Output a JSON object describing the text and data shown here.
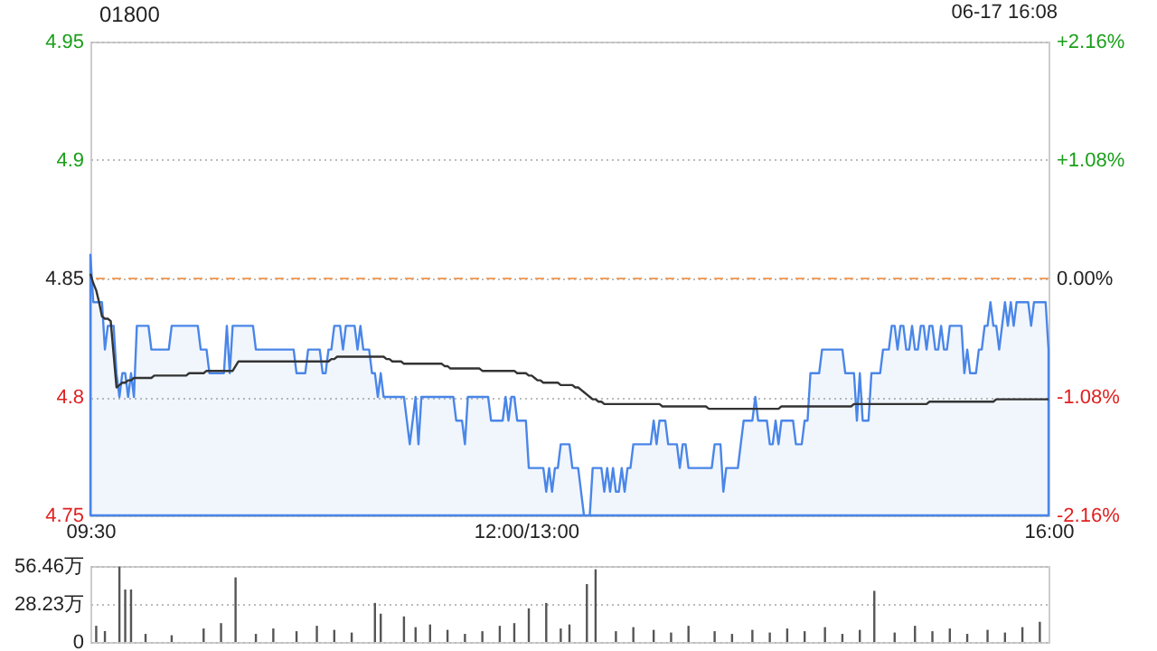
{
  "chart_data": [
    {
      "type": "area",
      "title": "01800",
      "annotations": [
        "06-17 16:08"
      ],
      "categories": [
        "09:30",
        null,
        null,
        null,
        null,
        null,
        null,
        null,
        null,
        null,
        null,
        null,
        null,
        null,
        null,
        null,
        null,
        null,
        null,
        null,
        null,
        null,
        null,
        null,
        null,
        null,
        null,
        null,
        null,
        null,
        null,
        null,
        null,
        null,
        null,
        null,
        null,
        null,
        null,
        null,
        null,
        null,
        null,
        null,
        null,
        null,
        null,
        null,
        null,
        null,
        null,
        null,
        null,
        null,
        null,
        null,
        null,
        null,
        null,
        null,
        null,
        null,
        null,
        null,
        null,
        null,
        null,
        null,
        null,
        null,
        null,
        null,
        null,
        null,
        null,
        null,
        null,
        null,
        null,
        null,
        null,
        null,
        null,
        null,
        null,
        null,
        null,
        null,
        null,
        null,
        null,
        null,
        null,
        null,
        null,
        null,
        null,
        null,
        null,
        null,
        null,
        null,
        null,
        null,
        null,
        null,
        null,
        null,
        null,
        null,
        null,
        null,
        null,
        null,
        null,
        null,
        null,
        null,
        null,
        null,
        null,
        null,
        null,
        null,
        null,
        null,
        null,
        null,
        null,
        null,
        null,
        null,
        null,
        null,
        null,
        null,
        null,
        null,
        null,
        null,
        null,
        null,
        null,
        null,
        null,
        null,
        null,
        null,
        null,
        null,
        "12:00/13:00",
        null,
        null,
        null,
        null,
        null,
        null,
        null,
        null,
        null,
        null,
        null,
        null,
        null,
        null,
        null,
        null,
        null,
        null,
        null,
        null,
        null,
        null,
        null,
        null,
        null,
        null,
        null,
        null,
        null,
        null,
        null,
        null,
        null,
        null,
        null,
        null,
        null,
        null,
        null,
        null,
        null,
        null,
        null,
        null,
        null,
        null,
        null,
        null,
        null,
        null,
        null,
        null,
        null,
        null,
        null,
        null,
        null,
        null,
        null,
        null,
        null,
        null,
        null,
        null,
        null,
        null,
        null,
        null,
        null,
        null,
        null,
        null,
        null,
        null,
        null,
        null,
        null,
        null,
        null,
        null,
        null,
        null,
        null,
        null,
        null,
        null,
        null,
        null,
        null,
        null,
        null,
        null,
        null,
        null,
        null,
        null,
        null,
        null,
        null,
        null,
        null,
        null,
        null,
        null,
        null,
        null,
        null,
        null,
        null,
        null,
        null,
        null,
        null,
        null,
        null,
        null,
        null,
        null,
        null,
        null,
        null,
        null,
        null,
        null,
        null,
        null,
        null,
        null,
        null,
        null,
        null,
        null,
        null,
        null,
        null,
        null,
        null,
        null,
        null,
        null,
        null,
        null,
        null,
        null,
        null,
        null,
        null,
        null,
        null,
        null,
        null,
        null,
        null,
        null,
        null,
        null,
        null,
        null,
        null,
        null,
        null,
        null,
        null,
        null,
        null,
        null,
        null,
        null,
        null,
        null,
        null,
        null,
        null,
        null,
        null,
        null,
        null,
        null,
        null,
        "16:00"
      ],
      "ylim": [
        4.75,
        4.95
      ],
      "yticks": [
        4.75,
        4.8,
        4.85,
        4.9,
        4.95
      ],
      "y2lim": [
        -2.16,
        2.16
      ],
      "y2ticks": [
        {
          "value": -2.16,
          "label": "-2.16%"
        },
        {
          "value": -1.08,
          "label": "-1.08%"
        },
        {
          "value": 0,
          "label": "0.00%"
        },
        {
          "value": 1.08,
          "label": "+1.08%"
        },
        {
          "value": 2.16,
          "label": "+2.16%"
        }
      ],
      "grid": "y",
      "ref_lines": [
        {
          "axis": "y",
          "value": 4.85,
          "color": "#f0a060",
          "line_style": "dashed"
        }
      ],
      "series": [
        {
          "type": "area",
          "color": "#4a86e8",
          "values": [
            4.86,
            4.84,
            4.84,
            4.84,
            4.84,
            4.82,
            4.83,
            4.83,
            4.83,
            4.81,
            4.8,
            4.81,
            4.81,
            4.8,
            4.81,
            4.8,
            4.83,
            4.83,
            4.83,
            4.83,
            4.83,
            4.82,
            4.82,
            4.82,
            4.82,
            4.82,
            4.82,
            4.82,
            4.83,
            4.83,
            4.83,
            4.83,
            4.83,
            4.83,
            4.83,
            4.83,
            4.83,
            4.83,
            4.82,
            4.82,
            4.82,
            4.81,
            4.81,
            4.81,
            4.81,
            4.81,
            4.81,
            4.83,
            4.81,
            4.83,
            4.83,
            4.83,
            4.83,
            4.83,
            4.83,
            4.83,
            4.83,
            4.82,
            4.82,
            4.82,
            4.82,
            4.82,
            4.82,
            4.82,
            4.82,
            4.82,
            4.82,
            4.82,
            4.82,
            4.82,
            4.82,
            4.81,
            4.81,
            4.81,
            4.81,
            4.82,
            4.82,
            4.82,
            4.82,
            4.82,
            4.81,
            4.81,
            4.82,
            4.82,
            4.83,
            4.83,
            4.83,
            4.82,
            4.83,
            4.83,
            4.83,
            4.83,
            4.82,
            4.83,
            4.82,
            4.82,
            4.82,
            4.81,
            4.81,
            4.8,
            4.81,
            4.8,
            4.8,
            4.8,
            4.8,
            4.8,
            4.8,
            4.8,
            4.8,
            4.79,
            4.78,
            4.79,
            4.8,
            4.78,
            4.8,
            4.8,
            4.8,
            4.8,
            4.8,
            4.8,
            4.8,
            4.8,
            4.8,
            4.8,
            4.8,
            4.8,
            4.79,
            4.79,
            4.79,
            4.78,
            4.8,
            4.8,
            4.8,
            4.8,
            4.8,
            4.8,
            4.8,
            4.8,
            4.79,
            4.79,
            4.79,
            4.79,
            4.79,
            4.8,
            4.79,
            4.8,
            4.8,
            4.79,
            4.79,
            4.79,
            4.79,
            4.77,
            4.77,
            4.77,
            4.77,
            4.77,
            4.77,
            4.76,
            4.77,
            4.76,
            4.77,
            4.77,
            4.78,
            4.78,
            4.78,
            4.78,
            4.77,
            4.77,
            4.77,
            4.76,
            4.75,
            4.75,
            4.75,
            4.77,
            4.77,
            4.77,
            4.77,
            4.76,
            4.77,
            4.76,
            4.77,
            4.76,
            4.76,
            4.77,
            4.76,
            4.77,
            4.77,
            4.78,
            4.78,
            4.78,
            4.78,
            4.78,
            4.78,
            4.78,
            4.79,
            4.78,
            4.79,
            4.79,
            4.79,
            4.78,
            4.78,
            4.78,
            4.78,
            4.77,
            4.78,
            4.78,
            4.77,
            4.77,
            4.77,
            4.77,
            4.77,
            4.77,
            4.77,
            4.77,
            4.77,
            4.78,
            4.78,
            4.78,
            4.76,
            4.77,
            4.77,
            4.77,
            4.77,
            4.77,
            4.78,
            4.79,
            4.79,
            4.79,
            4.79,
            4.8,
            4.79,
            4.79,
            4.79,
            4.79,
            4.78,
            4.78,
            4.79,
            4.78,
            4.79,
            4.79,
            4.79,
            4.79,
            4.79,
            4.78,
            4.78,
            4.78,
            4.79,
            4.79,
            4.81,
            4.81,
            4.81,
            4.81,
            4.82,
            4.82,
            4.82,
            4.82,
            4.82,
            4.82,
            4.82,
            4.82,
            4.81,
            4.81,
            4.81,
            4.81,
            4.79,
            4.81,
            4.79,
            4.79,
            4.79,
            4.81,
            4.81,
            4.81,
            4.81,
            4.82,
            4.82,
            4.82,
            4.83,
            4.83,
            4.82,
            4.83,
            4.83,
            4.82,
            4.82,
            4.83,
            4.82,
            4.82,
            4.83,
            4.83,
            4.82,
            4.83,
            4.83,
            4.82,
            4.82,
            4.83,
            4.82,
            4.82,
            4.83,
            4.83,
            4.83,
            4.83,
            4.83,
            4.81,
            4.82,
            4.81,
            4.81,
            4.81,
            4.82,
            4.82,
            4.83,
            4.83,
            4.84,
            4.83,
            4.83,
            4.82,
            4.83,
            4.84,
            4.83,
            4.84,
            4.83,
            4.84,
            4.84,
            4.84,
            4.84,
            4.84,
            4.83,
            4.84,
            4.84,
            4.84,
            4.84,
            4.84,
            4.82
          ]
        },
        {
          "type": "line",
          "color": "#333333",
          "values": [
            4.852,
            4.848,
            4.845,
            4.84,
            4.834,
            4.833,
            4.833,
            4.832,
            4.818,
            4.804,
            4.805,
            4.806,
            4.806,
            4.807,
            4.807,
            4.808,
            4.808,
            4.808,
            4.808,
            4.808,
            4.808,
            4.808,
            4.809,
            4.809,
            4.809,
            4.809,
            4.809,
            4.809,
            4.809,
            4.809,
            4.809,
            4.809,
            4.809,
            4.809,
            4.81,
            4.81,
            4.81,
            4.81,
            4.81,
            4.81,
            4.811,
            4.811,
            4.811,
            4.811,
            4.811,
            4.811,
            4.811,
            4.811,
            4.811,
            4.811,
            4.813,
            4.815,
            4.815,
            4.815,
            4.815,
            4.815,
            4.815,
            4.815,
            4.815,
            4.815,
            4.815,
            4.815,
            4.815,
            4.815,
            4.815,
            4.815,
            4.815,
            4.815,
            4.815,
            4.815,
            4.815,
            4.815,
            4.815,
            4.815,
            4.815,
            4.815,
            4.815,
            4.815,
            4.815,
            4.815,
            4.815,
            4.815,
            4.815,
            4.816,
            4.816,
            4.817,
            4.817,
            4.817,
            4.817,
            4.817,
            4.817,
            4.817,
            4.817,
            4.817,
            4.817,
            4.817,
            4.817,
            4.817,
            4.817,
            4.817,
            4.817,
            4.817,
            4.816,
            4.816,
            4.815,
            4.815,
            4.815,
            4.815,
            4.814,
            4.814,
            4.814,
            4.814,
            4.814,
            4.814,
            4.814,
            4.814,
            4.814,
            4.814,
            4.814,
            4.814,
            4.814,
            4.814,
            4.813,
            4.813,
            4.812,
            4.812,
            4.812,
            4.812,
            4.812,
            4.812,
            4.812,
            4.812,
            4.812,
            4.812,
            4.812,
            4.811,
            4.811,
            4.811,
            4.811,
            4.811,
            4.811,
            4.811,
            4.811,
            4.811,
            4.811,
            4.811,
            4.811,
            4.81,
            4.81,
            4.81,
            4.81,
            4.809,
            4.809,
            4.808,
            4.807,
            4.807,
            4.806,
            4.806,
            4.806,
            4.806,
            4.806,
            4.806,
            4.805,
            4.805,
            4.805,
            4.805,
            4.805,
            4.804,
            4.804,
            4.803,
            4.802,
            4.801,
            4.8,
            4.799,
            4.799,
            4.798,
            4.798,
            4.797,
            4.797,
            4.797,
            4.797,
            4.797,
            4.797,
            4.797,
            4.797,
            4.797,
            4.797,
            4.797,
            4.797,
            4.797,
            4.797,
            4.797,
            4.797,
            4.797,
            4.797,
            4.797,
            4.797,
            4.796,
            4.796,
            4.796,
            4.796,
            4.796,
            4.796,
            4.796,
            4.796,
            4.796,
            4.796,
            4.796,
            4.796,
            4.796,
            4.796,
            4.796,
            4.796,
            4.795,
            4.795,
            4.795,
            4.795,
            4.795,
            4.795,
            4.795,
            4.795,
            4.795,
            4.795,
            4.795,
            4.795,
            4.795,
            4.795,
            4.795,
            4.795,
            4.795,
            4.795,
            4.795,
            4.795,
            4.795,
            4.795,
            4.795,
            4.795,
            4.795,
            4.796,
            4.796,
            4.796,
            4.796,
            4.796,
            4.796,
            4.796,
            4.796,
            4.796,
            4.796,
            4.796,
            4.796,
            4.796,
            4.796,
            4.796,
            4.796,
            4.796,
            4.796,
            4.796,
            4.796,
            4.796,
            4.796,
            4.796,
            4.796,
            4.796,
            4.797,
            4.797,
            4.797,
            4.797,
            4.797,
            4.797,
            4.797,
            4.797,
            4.797,
            4.797,
            4.797,
            4.797,
            4.797,
            4.797,
            4.797,
            4.797,
            4.797,
            4.797,
            4.797,
            4.797,
            4.797,
            4.797,
            4.797,
            4.797,
            4.797,
            4.797,
            4.798,
            4.798,
            4.798,
            4.798,
            4.798,
            4.798,
            4.798,
            4.798,
            4.798,
            4.798,
            4.798,
            4.798,
            4.798,
            4.798,
            4.798,
            4.798,
            4.798,
            4.798,
            4.798,
            4.798,
            4.798,
            4.798,
            4.798,
            4.799,
            4.799,
            4.799,
            4.799,
            4.799,
            4.799,
            4.799,
            4.799,
            4.799,
            4.799,
            4.799,
            4.799,
            4.799,
            4.799,
            4.799,
            4.799,
            4.799,
            4.799,
            4.799
          ]
        }
      ]
    },
    {
      "type": "bar",
      "categories": [
        null,
        null,
        null,
        null,
        null,
        null,
        null,
        null,
        null,
        null,
        null,
        null,
        null,
        null,
        null,
        null,
        null,
        null,
        null,
        null,
        null,
        null,
        null,
        null,
        null,
        null,
        null,
        null,
        null,
        null,
        null,
        null,
        null,
        null,
        null,
        null,
        null,
        null,
        null,
        null,
        null,
        null,
        null,
        null,
        null,
        null,
        null,
        null,
        null,
        null,
        null,
        null,
        null,
        null,
        null,
        null,
        null,
        null,
        null,
        null,
        null,
        null,
        null,
        null,
        null,
        null,
        null,
        null,
        null,
        null,
        null,
        null,
        null,
        null,
        null,
        null,
        null,
        null,
        null,
        null,
        null,
        null,
        null,
        null,
        null,
        null,
        null,
        null,
        null,
        null,
        null,
        null,
        null,
        null,
        null,
        null,
        null,
        null,
        null,
        null,
        null,
        null,
        null,
        null,
        null,
        null,
        null,
        null,
        null,
        null,
        null,
        null,
        null,
        null,
        null,
        null,
        null,
        null,
        null,
        null,
        null,
        null,
        null,
        null,
        null,
        null,
        null,
        null,
        null,
        null,
        null,
        null,
        null,
        null,
        null,
        null,
        null,
        null,
        null,
        null,
        null,
        null,
        null,
        null,
        null,
        null,
        null,
        null,
        null,
        null,
        null,
        null,
        null,
        null,
        null,
        null,
        null,
        null,
        null,
        null,
        null,
        null,
        null,
        null,
        null,
        null,
        null,
        null,
        null,
        null,
        null,
        null,
        null,
        null,
        null,
        null,
        null,
        null,
        null,
        null,
        null,
        null,
        null,
        null,
        null,
        null,
        null,
        null,
        null,
        null,
        null,
        null,
        null,
        null,
        null,
        null,
        null,
        null,
        null,
        null,
        null,
        null,
        null,
        null,
        null,
        null,
        null,
        null,
        null,
        null,
        null,
        null,
        null,
        null,
        null,
        null,
        null,
        null,
        null,
        null,
        null,
        null,
        null,
        null,
        null,
        null,
        null,
        null,
        null,
        null,
        null,
        null,
        null,
        null,
        null,
        null,
        null,
        null,
        null,
        null,
        null,
        null,
        null,
        null,
        null,
        null,
        null,
        null,
        null,
        null,
        null,
        null,
        null,
        null,
        null,
        null,
        null,
        null,
        null,
        null,
        null,
        null,
        null,
        null,
        null,
        null,
        null,
        null,
        null,
        null,
        null,
        null,
        null,
        null,
        null,
        null,
        null,
        null,
        null,
        null,
        null,
        null,
        null,
        null,
        null,
        null,
        null,
        null,
        null,
        null,
        null,
        null,
        null,
        null,
        null,
        null,
        null,
        null,
        null,
        null,
        null,
        null,
        null,
        null,
        null,
        null,
        null,
        null,
        null,
        null,
        null,
        null,
        null,
        null,
        null,
        null,
        null,
        null,
        null,
        null,
        null,
        null,
        null,
        null,
        null,
        null,
        null,
        null,
        null,
        null,
        null
      ],
      "ylim": [
        0,
        56.46
      ],
      "yticks": [
        0,
        {
          "value": 28.23,
          "label": "28.23万"
        },
        {
          "value": 56.46,
          "label": "56.46万"
        }
      ],
      "grid": "y",
      "series": [
        {
          "color": "#555555",
          "values": [
            null,
            null,
            12,
            null,
            null,
            8,
            null,
            null,
            null,
            null,
            56,
            null,
            39,
            null,
            39,
            null,
            null,
            null,
            null,
            6,
            null,
            null,
            null,
            null,
            null,
            null,
            null,
            null,
            5,
            null,
            null,
            null,
            null,
            null,
            null,
            null,
            null,
            null,
            null,
            10,
            null,
            null,
            null,
            null,
            null,
            14,
            null,
            null,
            null,
            null,
            48,
            null,
            null,
            null,
            null,
            null,
            null,
            6,
            null,
            null,
            null,
            null,
            null,
            10,
            null,
            null,
            null,
            null,
            null,
            null,
            null,
            8,
            null,
            null,
            null,
            null,
            null,
            null,
            12,
            null,
            null,
            null,
            null,
            null,
            9,
            null,
            null,
            null,
            null,
            null,
            7,
            null,
            null,
            null,
            null,
            null,
            null,
            null,
            29,
            null,
            21,
            null,
            null,
            null,
            null,
            null,
            null,
            null,
            19,
            null,
            null,
            null,
            11,
            null,
            null,
            null,
            null,
            13,
            null,
            null,
            null,
            null,
            null,
            9,
            null,
            null,
            null,
            null,
            null,
            6,
            null,
            null,
            null,
            null,
            null,
            8,
            null,
            null,
            null,
            null,
            null,
            12,
            null,
            null,
            null,
            null,
            14,
            null,
            null,
            null,
            null,
            25,
            null,
            null,
            null,
            null,
            null,
            29,
            null,
            null,
            null,
            null,
            10,
            null,
            null,
            13,
            null,
            null,
            null,
            null,
            null,
            43,
            null,
            null,
            54,
            null,
            null,
            null,
            null,
            null,
            null,
            8,
            null,
            null,
            null,
            null,
            null,
            11,
            null,
            null,
            null,
            null,
            null,
            null,
            9,
            null,
            null,
            null,
            null,
            null,
            7,
            null,
            null,
            null,
            null,
            null,
            12,
            null,
            null,
            null,
            null,
            null,
            null,
            null,
            null,
            8,
            null,
            null,
            null,
            null,
            null,
            6,
            null,
            null,
            null,
            null,
            null,
            null,
            9,
            null,
            null,
            null,
            null,
            null,
            7,
            null,
            null,
            null,
            null,
            null,
            10,
            null,
            null,
            null,
            null,
            null,
            8,
            null,
            null,
            null,
            null,
            null,
            null,
            11,
            null,
            null,
            null,
            null,
            null,
            6,
            null,
            null,
            null,
            null,
            null,
            9,
            null,
            null,
            null,
            null,
            38,
            null,
            null,
            null,
            null,
            null,
            null,
            7,
            null,
            null,
            null,
            null,
            null,
            null,
            12,
            null,
            null,
            null,
            null,
            null,
            8,
            null,
            null,
            null,
            null,
            null,
            10,
            null,
            null,
            null,
            null,
            null,
            6,
            null,
            null,
            null,
            null,
            null,
            null,
            9,
            null,
            null,
            null,
            null,
            null,
            7,
            null,
            null,
            null,
            null,
            null,
            11,
            null,
            null,
            null,
            null,
            null,
            15,
            null,
            null,
            null
          ]
        }
      ]
    }
  ]
}
